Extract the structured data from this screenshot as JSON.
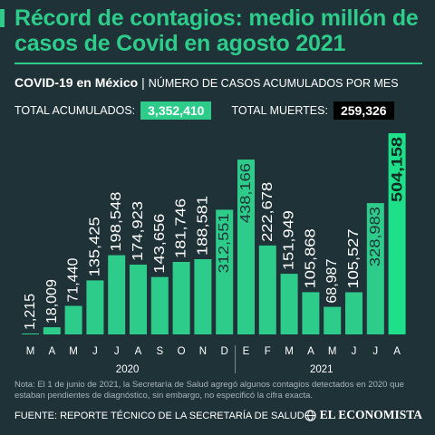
{
  "headline": "Récord de contagios: medio millón de casos de Covid en agosto 2021",
  "subtitle": {
    "bold": "COVID-19 en México",
    "separator": "|",
    "light": "NÚMERO DE CASOS ACUMULADOS POR MES"
  },
  "totals": {
    "cases_label": "TOTAL ACUMULADOS:",
    "cases_value": "3,352,410",
    "deaths_label": "TOTAL MUERTES:",
    "deaths_value": "259,326"
  },
  "colors": {
    "background": "#1e3238",
    "accent": "#2ecc8a",
    "bright": "#1fe08a"
  },
  "chart_data": {
    "type": "bar",
    "categories": [
      "M",
      "A",
      "M",
      "J",
      "J",
      "A",
      "S",
      "O",
      "N",
      "D",
      "E",
      "F",
      "M",
      "A",
      "M",
      "J",
      "J",
      "A"
    ],
    "values": [
      1215,
      18009,
      71440,
      135425,
      198548,
      174923,
      143656,
      181746,
      188581,
      312551,
      438166,
      222678,
      151949,
      105868,
      68987,
      105527,
      328983,
      504158
    ],
    "value_labels": [
      "1,215",
      "18,009",
      "71,440",
      "135,425",
      "198,548",
      "174,923",
      "143,656",
      "181,746",
      "188,581",
      "312,551",
      "438,166",
      "222,678",
      "151,949",
      "105,868",
      "68,987",
      "105,527",
      "328,983",
      "504,158"
    ],
    "years": [
      {
        "label": "2020",
        "months": 10
      },
      {
        "label": "2021",
        "months": 8
      }
    ],
    "highlight_last": true
  },
  "note": "Nota: El 1 de junio de 2021, la Secretaría de Salud agregó algunos contagios detectados en 2020 que estaban pendientes de diagnóstico, sin embargo, no especificó la cifra exacta.",
  "source": "FUENTE: REPORTE TÉCNICO DE LA SECRETARÍA DE SALUD",
  "brand": "EL ECONOMISTA",
  "brand_icon": "globe-logo-icon"
}
